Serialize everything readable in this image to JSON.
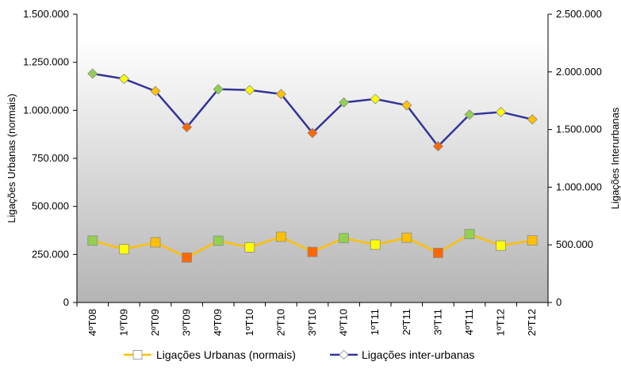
{
  "chart_data": {
    "type": "line",
    "categories": [
      "4ºT08",
      "1ºT09",
      "2ºT09",
      "3ºT09",
      "4ºT09",
      "1ºT10",
      "2ºT10",
      "3ºT10",
      "4ºT10",
      "1ºT11",
      "2ºT11",
      "3ºT11",
      "4ºT11",
      "1ºT12",
      "2ºT12"
    ],
    "y_left": {
      "label": "Ligações Urbanas (normais)",
      "ylim": [
        0,
        1500000
      ],
      "ticks": [
        "0",
        "250.000",
        "500.000",
        "750.000",
        "1.000.000",
        "1.250.000",
        "1.500.000"
      ],
      "tick_values": [
        0,
        250000,
        500000,
        750000,
        1000000,
        1250000,
        1500000
      ]
    },
    "y_right": {
      "label": "Ligações Interurbanas",
      "ylim": [
        0,
        2500000
      ],
      "ticks": [
        "0",
        "500.000",
        "1.000.000",
        "1.500.000",
        "2.000.000",
        "2.500.000"
      ],
      "tick_values": [
        0,
        500000,
        1000000,
        1500000,
        2000000,
        2500000
      ]
    },
    "series": [
      {
        "name": "Ligações Urbanas (normais)",
        "axis": "left",
        "values": [
          322000,
          277000,
          313000,
          234000,
          321000,
          287000,
          342000,
          263000,
          335000,
          301000,
          337000,
          258000,
          356000,
          296000,
          323000
        ],
        "line_color": "#ffc000",
        "marker": "square",
        "marker_colors": [
          "#92d050",
          "#ffff00",
          "#ffc000",
          "#ff6600",
          "#92d050",
          "#ffff00",
          "#ffc000",
          "#ff6600",
          "#92d050",
          "#ffff00",
          "#ffc000",
          "#ff6600",
          "#92d050",
          "#ffff00",
          "#ffc000"
        ]
      },
      {
        "name": "Ligações inter-urbanas",
        "axis": "right",
        "values": [
          1985000,
          1940000,
          1833000,
          1520000,
          1850000,
          1842000,
          1808000,
          1470000,
          1735000,
          1765000,
          1710000,
          1355000,
          1630000,
          1652000,
          1588000
        ],
        "line_color": "#333399",
        "marker": "diamond",
        "marker_colors": [
          "#92d050",
          "#ffff00",
          "#ffc000",
          "#ff6600",
          "#92d050",
          "#ffff00",
          "#ffc000",
          "#ff6600",
          "#92d050",
          "#ffff00",
          "#ffc000",
          "#ff6600",
          "#92d050",
          "#ffff00",
          "#ffc000"
        ]
      }
    ],
    "legend": {
      "position": "bottom",
      "items": [
        {
          "label": "Ligações Urbanas (normais)",
          "line_color": "#ffc000",
          "marker": "square",
          "marker_color": "#ffffff"
        },
        {
          "label": "Ligações inter-urbanas",
          "line_color": "#333399",
          "marker": "diamond",
          "marker_color": "#ffffff"
        }
      ]
    },
    "background": {
      "gradient_top": "#ffffff",
      "gradient_bottom": "#b4b4b4"
    }
  }
}
